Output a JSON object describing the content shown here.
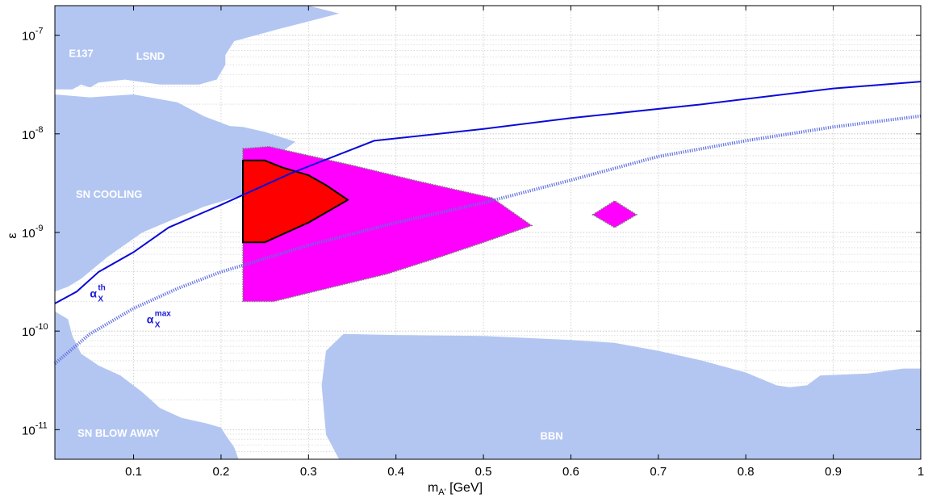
{
  "chart_data": {
    "type": "area",
    "title": "",
    "xlabel": "m",
    "xlabel_sub": "A'",
    "xlabel_unit": " [GeV]",
    "ylabel": "ε",
    "xlim": [
      0.01,
      1.0
    ],
    "ylim_log10": [
      -11.3,
      -6.7
    ],
    "y_scale": "log",
    "grid": true,
    "x_ticks": [
      {
        "value": 0.1,
        "label": "0.1"
      },
      {
        "value": 0.2,
        "label": "0.2"
      },
      {
        "value": 0.3,
        "label": "0.3"
      },
      {
        "value": 0.4,
        "label": "0.4"
      },
      {
        "value": 0.5,
        "label": "0.5"
      },
      {
        "value": 0.6,
        "label": "0.6"
      },
      {
        "value": 0.7,
        "label": "0.7"
      },
      {
        "value": 0.8,
        "label": "0.8"
      },
      {
        "value": 0.9,
        "label": "0.9"
      },
      {
        "value": 1.0,
        "label": "1"
      }
    ],
    "y_ticks": [
      {
        "exp": -11,
        "base": "10",
        "power": "-11"
      },
      {
        "exp": -10,
        "base": "10",
        "power": "-10"
      },
      {
        "exp": -9,
        "base": "10",
        "power": "-9"
      },
      {
        "exp": -8,
        "base": "10",
        "power": "-8"
      },
      {
        "exp": -7,
        "base": "10",
        "power": "-7"
      }
    ],
    "colors": {
      "excluded": "#b3c6f2",
      "magenta_region": "#ff00ff",
      "red_region": "#ff0000",
      "curve_th": "#0a0ad8",
      "curve_max": "#6070e0"
    },
    "excluded_regions": [
      {
        "name": "E137 / LSND",
        "label": "LSND",
        "points": [
          [
            0.01,
            -6.7
          ],
          [
            0.3,
            -6.7
          ],
          [
            0.335,
            -6.78
          ],
          [
            0.265,
            -6.94
          ],
          [
            0.215,
            -7.06
          ],
          [
            0.205,
            -7.2
          ],
          [
            0.205,
            -7.3
          ],
          [
            0.195,
            -7.45
          ],
          [
            0.175,
            -7.5
          ],
          [
            0.13,
            -7.5
          ],
          [
            0.09,
            -7.45
          ],
          [
            0.06,
            -7.48
          ],
          [
            0.05,
            -7.53
          ],
          [
            0.04,
            -7.5
          ],
          [
            0.03,
            -7.55
          ],
          [
            0.01,
            -7.55
          ]
        ]
      },
      {
        "name": "SN Cooling",
        "label": "SN COOLING",
        "points": [
          [
            0.01,
            -7.6
          ],
          [
            0.05,
            -7.63
          ],
          [
            0.1,
            -7.6
          ],
          [
            0.15,
            -7.68
          ],
          [
            0.18,
            -7.82
          ],
          [
            0.21,
            -7.92
          ],
          [
            0.225,
            -7.93
          ],
          [
            0.25,
            -7.98
          ],
          [
            0.285,
            -8.08
          ],
          [
            0.27,
            -8.18
          ],
          [
            0.24,
            -8.4
          ],
          [
            0.225,
            -8.62
          ],
          [
            0.18,
            -8.74
          ],
          [
            0.15,
            -8.85
          ],
          [
            0.11,
            -9.0
          ],
          [
            0.07,
            -9.25
          ],
          [
            0.04,
            -9.47
          ],
          [
            0.025,
            -9.55
          ],
          [
            0.01,
            -9.6
          ]
        ]
      },
      {
        "name": "SN Blow Away",
        "label": "SN BLOW AWAY",
        "points": [
          [
            0.01,
            -9.8
          ],
          [
            0.025,
            -9.88
          ],
          [
            0.03,
            -10.05
          ],
          [
            0.04,
            -10.23
          ],
          [
            0.06,
            -10.35
          ],
          [
            0.085,
            -10.45
          ],
          [
            0.11,
            -10.62
          ],
          [
            0.13,
            -10.78
          ],
          [
            0.155,
            -10.88
          ],
          [
            0.185,
            -10.94
          ],
          [
            0.2,
            -10.98
          ],
          [
            0.205,
            -11.05
          ],
          [
            0.215,
            -11.18
          ],
          [
            0.22,
            -11.3
          ],
          [
            0.01,
            -11.3
          ]
        ]
      },
      {
        "name": "BBN",
        "label": "BBN",
        "points": [
          [
            0.335,
            -11.3
          ],
          [
            0.32,
            -11.05
          ],
          [
            0.315,
            -10.55
          ],
          [
            0.32,
            -10.2
          ],
          [
            0.34,
            -10.03
          ],
          [
            0.4,
            -10.04
          ],
          [
            0.5,
            -10.05
          ],
          [
            0.6,
            -10.09
          ],
          [
            0.65,
            -10.12
          ],
          [
            0.7,
            -10.2
          ],
          [
            0.75,
            -10.3
          ],
          [
            0.8,
            -10.42
          ],
          [
            0.835,
            -10.55
          ],
          [
            0.85,
            -10.57
          ],
          [
            0.87,
            -10.55
          ],
          [
            0.885,
            -10.45
          ],
          [
            0.94,
            -10.43
          ],
          [
            0.98,
            -10.38
          ],
          [
            1.0,
            -10.38
          ],
          [
            1.0,
            -11.3
          ]
        ]
      }
    ],
    "exclusion_labels": [
      {
        "text": "E137",
        "x": 0.026,
        "y": -7.22
      },
      {
        "text": "LSND",
        "x": 0.103,
        "y": -7.25
      },
      {
        "text": "SN COOLING",
        "x": 0.034,
        "y": -8.65
      },
      {
        "text": "SN BLOW AWAY",
        "x": 0.036,
        "y": -11.07
      },
      {
        "text": "BBN",
        "x": 0.565,
        "y": -11.1
      }
    ],
    "magenta_regions": [
      {
        "name": "allowed-region-main",
        "points": [
          [
            0.225,
            -8.15
          ],
          [
            0.255,
            -8.13
          ],
          [
            0.29,
            -8.2
          ],
          [
            0.35,
            -8.32
          ],
          [
            0.42,
            -8.47
          ],
          [
            0.47,
            -8.57
          ],
          [
            0.51,
            -8.65
          ],
          [
            0.555,
            -8.93
          ],
          [
            0.5,
            -9.1
          ],
          [
            0.45,
            -9.25
          ],
          [
            0.39,
            -9.42
          ],
          [
            0.32,
            -9.57
          ],
          [
            0.26,
            -9.7
          ],
          [
            0.225,
            -9.7
          ]
        ]
      },
      {
        "name": "allowed-region-island",
        "points": [
          [
            0.625,
            -8.82
          ],
          [
            0.65,
            -8.68
          ],
          [
            0.675,
            -8.82
          ],
          [
            0.65,
            -8.95
          ]
        ]
      }
    ],
    "red_region": {
      "name": "preferred-region",
      "points": [
        [
          0.225,
          -8.27
        ],
        [
          0.25,
          -8.27
        ],
        [
          0.27,
          -8.34
        ],
        [
          0.3,
          -8.42
        ],
        [
          0.32,
          -8.52
        ],
        [
          0.345,
          -8.67
        ],
        [
          0.3,
          -8.9
        ],
        [
          0.25,
          -9.1
        ],
        [
          0.225,
          -9.1
        ]
      ]
    },
    "series": [
      {
        "name": "αX th",
        "style": "solid",
        "x": [
          0.01,
          0.035,
          0.06,
          0.1,
          0.14,
          0.2,
          0.28,
          0.375,
          0.5,
          0.6,
          0.75,
          0.9,
          1.0
        ],
        "y": [
          -9.72,
          -9.6,
          -9.4,
          -9.2,
          -8.95,
          -8.72,
          -8.4,
          -8.07,
          -7.95,
          -7.84,
          -7.7,
          -7.54,
          -7.47
        ]
      },
      {
        "name": "αX max",
        "style": "dotted",
        "x": [
          0.01,
          0.05,
          0.1,
          0.15,
          0.2,
          0.3,
          0.4,
          0.5,
          0.6,
          0.7,
          0.8,
          0.9,
          1.0
        ],
        "y": [
          -10.33,
          -10.03,
          -9.77,
          -9.57,
          -9.4,
          -9.13,
          -8.9,
          -8.7,
          -8.47,
          -8.23,
          -8.07,
          -7.93,
          -7.82
        ]
      }
    ],
    "curve_labels": [
      {
        "name": "th",
        "base": "α",
        "sub": "X",
        "sup": "th",
        "x": 0.05,
        "y": -9.66
      },
      {
        "name": "max",
        "base": "α",
        "sub": "X",
        "sup": "max",
        "x": 0.115,
        "y": -9.92
      }
    ]
  }
}
